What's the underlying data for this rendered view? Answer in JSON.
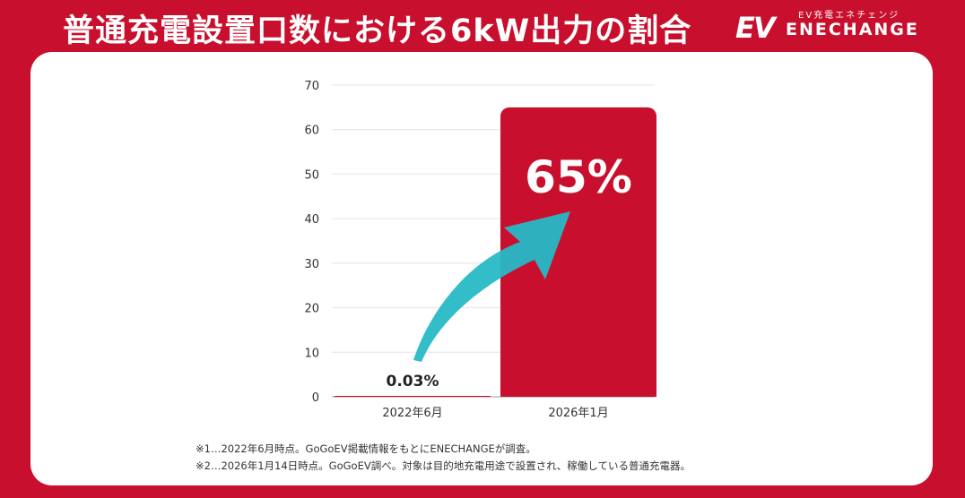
{
  "header": {
    "title": "普通充電設置口数における6kW出力の割合",
    "logo_mark": "EV",
    "logo_sub": "EV充電エネチェンジ",
    "logo_brand": "ENECHANGE"
  },
  "chart_data": {
    "type": "bar",
    "categories": [
      "2022年6月",
      "2026年1月"
    ],
    "values": [
      0.03,
      65
    ],
    "data_labels": [
      "0.03%",
      "65%"
    ],
    "ylim": [
      0,
      70
    ],
    "yticks": [
      "0",
      "10",
      "20",
      "30",
      "40",
      "50",
      "60",
      "70"
    ],
    "grid": true,
    "bar_color": "#c8102e",
    "arrow_color": "#27b9c6"
  },
  "footnotes": [
    "※1…2022年6月時点。GoGoEV掲載情報をもとにENECHANGEが調査。",
    "※2…2026年1月14日時点。GoGoEV調べ。対象は目的地充電用途で設置され、稼働している普通充電器。"
  ]
}
